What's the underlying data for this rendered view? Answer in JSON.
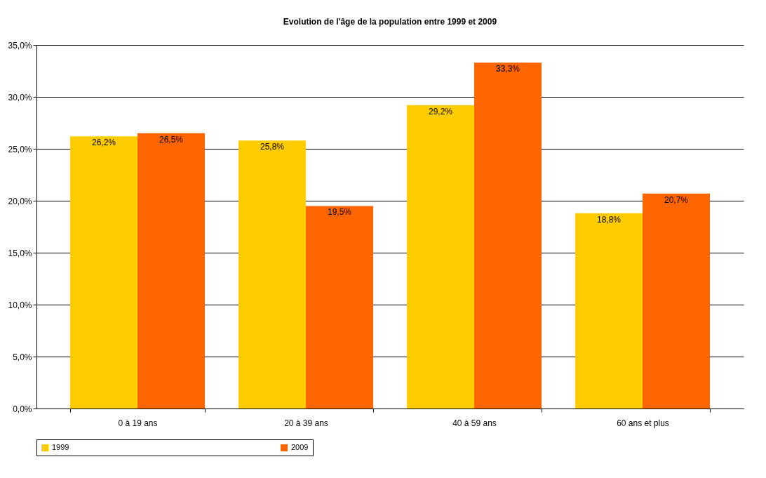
{
  "chart_data": {
    "type": "bar",
    "title": "Evolution de l'âge de la population entre 1999 et 2009",
    "categories": [
      "0 à 19 ans",
      "20 à 39 ans",
      "40 à 59 ans",
      "60 ans et plus"
    ],
    "series": [
      {
        "name": "1999",
        "color": "#ffcc00",
        "values": [
          26.2,
          25.8,
          29.2,
          18.8
        ],
        "value_labels": [
          "26,2%",
          "25,8%",
          "29,2%",
          "18,8%"
        ]
      },
      {
        "name": "2009",
        "color": "#ff6600",
        "values": [
          26.5,
          19.5,
          33.3,
          20.7
        ],
        "value_labels": [
          "26,5%",
          "19,5%",
          "33,3%",
          "20,7%"
        ]
      }
    ],
    "ylim": [
      0,
      35
    ],
    "yticks": [
      {
        "value": 0,
        "label": "0,0%"
      },
      {
        "value": 5,
        "label": "5,0%"
      },
      {
        "value": 10,
        "label": "10,0%"
      },
      {
        "value": 15,
        "label": "15,0%"
      },
      {
        "value": 20,
        "label": "20,0%"
      },
      {
        "value": 25,
        "label": "25,0%"
      },
      {
        "value": 30,
        "label": "30,0%"
      },
      {
        "value": 35,
        "label": "35,0%"
      }
    ],
    "grid": "y",
    "legend": "bottom"
  }
}
